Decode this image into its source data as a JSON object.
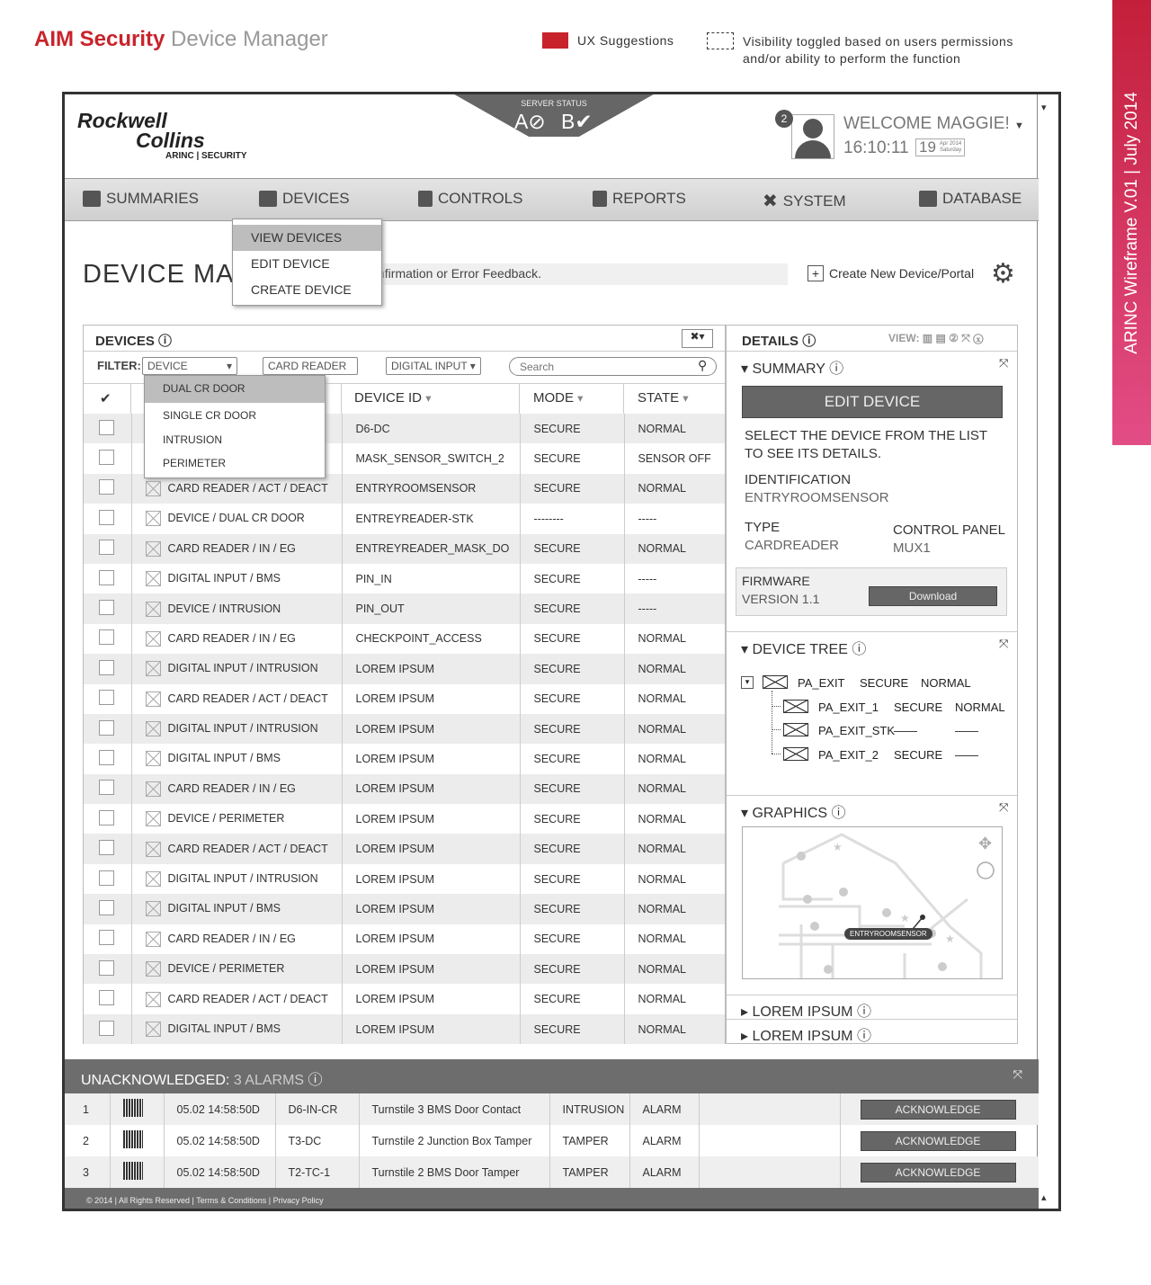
{
  "page": {
    "title_brand": "AIM Security",
    "title_rest": "Device Manager",
    "legend_ux": "UX Suggestions",
    "legend_visibility_1": "Visibility toggled based on users permissions",
    "legend_visibility_2": "and/or ability to perform the function",
    "side_band": "ARINC Wireframe  V.01   |   July 2014",
    "ux_color": "#c8232b"
  },
  "header": {
    "logo_1": "Rockwell",
    "logo_2": "Collins",
    "logo_3": "ARINC | SECURITY",
    "server_status_label": "SERVER STATUS",
    "server_a": "A⊘",
    "server_b": "B✔",
    "notifications": "2",
    "welcome": "WELCOME MAGGIE!",
    "time": "16:10:11",
    "day": "19",
    "month": "Apr 2014",
    "weekday": "Saturday"
  },
  "nav": [
    {
      "label": "SUMMARIES",
      "icon": "summaries-icon"
    },
    {
      "label": "DEVICES",
      "icon": "devices-icon"
    },
    {
      "label": "CONTROLS",
      "icon": "controls-icon"
    },
    {
      "label": "REPORTS",
      "icon": "reports-icon"
    },
    {
      "label": "SYSTEM",
      "icon": "system-icon"
    },
    {
      "label": "DATABASE",
      "icon": "database-icon"
    }
  ],
  "devices_menu": [
    "VIEW DEVICES",
    "EDIT DEVICE",
    "CREATE DEVICE"
  ],
  "page_title": "DEVICE MA",
  "feedback": "nfirmation or Error Feedback.",
  "create_new": "Create New Device/Portal",
  "devices": {
    "title": "DEVICES",
    "filter_label": "FILTER:",
    "filter_device": "DEVICE",
    "filter_card": "CARD READER",
    "filter_digital": "DIGITAL INPUT",
    "search_placeholder": "Search",
    "filter_options": [
      "DUAL CR DOOR",
      "SINGLE CR DOOR",
      "INTRUSION",
      "PERIMETER"
    ],
    "columns": {
      "check": "✔",
      "type": "",
      "id": "DEVICE ID",
      "mode": "MODE",
      "state": "STATE"
    },
    "rows": [
      [
        "",
        "D6-DC",
        "SECURE",
        "NORMAL"
      ],
      [
        "",
        "MASK_SENSOR_SWITCH_2",
        "SECURE",
        "SENSOR OFF"
      ],
      [
        "CARD READER / ACT / DEACT",
        "ENTRYROOMSENSOR",
        "SECURE",
        "NORMAL"
      ],
      [
        "DEVICE / DUAL CR DOOR",
        "ENTREYREADER-STK",
        "--------",
        "-----"
      ],
      [
        "CARD READER / IN / EG",
        "ENTREYREADER_MASK_DO",
        "SECURE",
        "NORMAL"
      ],
      [
        "DIGITAL INPUT / BMS",
        "PIN_IN",
        "SECURE",
        "-----"
      ],
      [
        "DEVICE / INTRUSION",
        "PIN_OUT",
        "SECURE",
        "-----"
      ],
      [
        "CARD READER / IN / EG",
        "CHECKPOINT_ACCESS",
        "SECURE",
        "NORMAL"
      ],
      [
        "DIGITAL INPUT / INTRUSION",
        "LOREM IPSUM",
        "SECURE",
        "NORMAL"
      ],
      [
        "CARD READER / ACT / DEACT",
        "LOREM IPSUM",
        "SECURE",
        "NORMAL"
      ],
      [
        "DIGITAL INPUT / INTRUSION",
        "LOREM IPSUM",
        "SECURE",
        "NORMAL"
      ],
      [
        "DIGITAL INPUT / BMS",
        "LOREM IPSUM",
        "SECURE",
        "NORMAL"
      ],
      [
        "CARD READER / IN / EG",
        "LOREM IPSUM",
        "SECURE",
        "NORMAL"
      ],
      [
        "DEVICE / PERIMETER",
        "LOREM IPSUM",
        "SECURE",
        "NORMAL"
      ],
      [
        "CARD READER / ACT / DEACT",
        "LOREM IPSUM",
        "SECURE",
        "NORMAL"
      ],
      [
        "DIGITAL INPUT / INTRUSION",
        "LOREM IPSUM",
        "SECURE",
        "NORMAL"
      ],
      [
        "DIGITAL INPUT / BMS",
        "LOREM IPSUM",
        "SECURE",
        "NORMAL"
      ],
      [
        "CARD READER / IN / EG",
        "LOREM IPSUM",
        "SECURE",
        "NORMAL"
      ],
      [
        "DEVICE / PERIMETER",
        "LOREM IPSUM",
        "SECURE",
        "NORMAL"
      ],
      [
        "CARD READER / ACT / DEACT",
        "LOREM IPSUM",
        "SECURE",
        "NORMAL"
      ],
      [
        "DIGITAL INPUT / BMS",
        "LOREM IPSUM",
        "SECURE",
        "NORMAL"
      ]
    ]
  },
  "details": {
    "title": "DETAILS",
    "view_label": "VIEW:",
    "summary": "SUMMARY",
    "edit_device": "EDIT DEVICE",
    "hint": "SELECT THE DEVICE FROM THE LIST TO SEE ITS DETAILS.",
    "identification_label": "IDENTIFICATION",
    "identification": "ENTRYROOMSENSOR",
    "type_label": "TYPE",
    "type": "CARDREADER",
    "panel_label": "CONTROL PANEL",
    "panel": "MUX1",
    "firmware_label": "FIRMWARE",
    "firmware": "VERSION 1.1",
    "download": "Download",
    "tree_title": "DEVICE TREE",
    "tree": [
      [
        "PA_EXIT",
        "SECURE",
        "NORMAL"
      ],
      [
        "PA_EXIT_1",
        "SECURE",
        "NORMAL"
      ],
      [
        "PA_EXIT_STK",
        "——",
        "——"
      ],
      [
        "PA_EXIT_2",
        "SECURE",
        "——"
      ]
    ],
    "graphics_title": "GRAPHICS",
    "map_label": "ENTRYROOMSENSOR",
    "lorem_1": "LOREM IPSUM",
    "lorem_2": "LOREM IPSUM"
  },
  "alarms": {
    "title": "UNACKNOWLEDGED:",
    "count": "3 ALARMS",
    "ack": "ACKNOWLEDGE",
    "rows": [
      [
        "1",
        "05.02 14:58:50D",
        "D6-IN-CR",
        "Turnstile 3 BMS Door Contact",
        "INTRUSION",
        "ALARM"
      ],
      [
        "2",
        "05.02 14:58:50D",
        "T3-DC",
        "Turnstile 2 Junction Box Tamper",
        "TAMPER",
        "ALARM"
      ],
      [
        "3",
        "05.02 14:58:50D",
        "T2-TC-1",
        "Turnstile 2 BMS Door Tamper",
        "TAMPER",
        "ALARM"
      ]
    ]
  },
  "footer": {
    "copyright": "© 2014",
    "rights": "All Rights Reserved",
    "terms": "Terms & Conditions",
    "privacy": "Privacy Policy"
  }
}
